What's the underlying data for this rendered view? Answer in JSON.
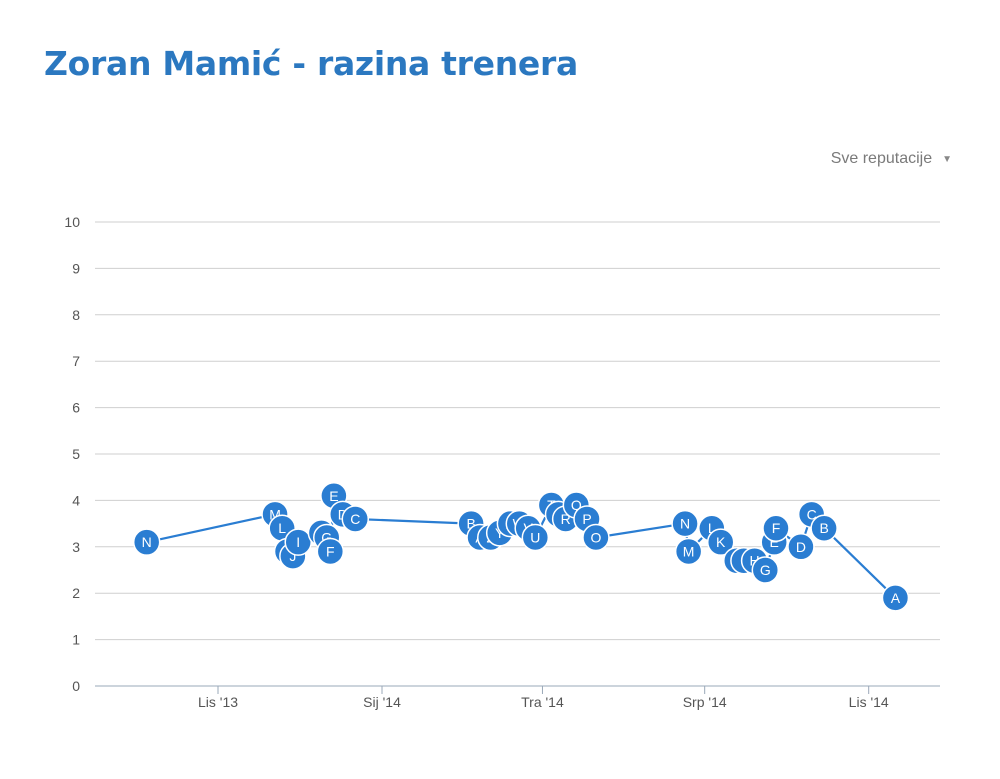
{
  "header": {
    "title": "Zoran Mamić - razina trenera"
  },
  "filter": {
    "label": "Sve reputacije",
    "caret_icon": "caret-down-icon"
  },
  "colors": {
    "title": "#2b78c0",
    "series": "#2a7dd2",
    "grid": "#cfcfcf",
    "axis_text": "#555555"
  },
  "chart_data": {
    "type": "line",
    "title": "Zoran Mamić - razina trenera",
    "xlabel": "",
    "ylabel": "",
    "ylim": [
      0,
      10
    ],
    "yticks": [
      "0",
      "1",
      "2",
      "3",
      "4",
      "5",
      "6",
      "7",
      "8",
      "9",
      "10"
    ],
    "xticks": [
      "Lis '13",
      "Sij '14",
      "Tra '14",
      "Srp '14",
      "Lis '14"
    ],
    "grid": true,
    "legend": "none",
    "series": [
      {
        "points": [
          {
            "x": "2013-08-22",
            "y": 3.1,
            "label": "N"
          },
          {
            "x": "2013-11-02",
            "y": 3.7,
            "label": "M"
          },
          {
            "x": "2013-11-06",
            "y": 3.4,
            "label": "L"
          },
          {
            "x": "2013-11-09",
            "y": 2.9,
            "label": "K"
          },
          {
            "x": "2013-11-12",
            "y": 2.8,
            "label": "J"
          },
          {
            "x": "2013-11-15",
            "y": 3.1,
            "label": "I"
          },
          {
            "x": "2013-11-28",
            "y": 3.3,
            "label": "H"
          },
          {
            "x": "2013-12-01",
            "y": 3.2,
            "label": "G"
          },
          {
            "x": "2013-12-03",
            "y": 2.9,
            "label": "F"
          },
          {
            "x": "2013-12-05",
            "y": 4.1,
            "label": "E"
          },
          {
            "x": "2013-12-10",
            "y": 3.7,
            "label": "D"
          },
          {
            "x": "2013-12-17",
            "y": 3.6,
            "label": "C"
          },
          {
            "x": "2014-02-20",
            "y": 3.5,
            "label": "B"
          },
          {
            "x": "2014-02-25",
            "y": 3.2,
            "label": "A"
          },
          {
            "x": "2014-03-03",
            "y": 3.2,
            "label": "Z"
          },
          {
            "x": "2014-03-08",
            "y": 3.3,
            "label": "Y"
          },
          {
            "x": "2014-03-14",
            "y": 3.5,
            "label": "X"
          },
          {
            "x": "2014-03-19",
            "y": 3.5,
            "label": "W"
          },
          {
            "x": "2014-03-24",
            "y": 3.4,
            "label": "V"
          },
          {
            "x": "2014-03-28",
            "y": 3.2,
            "label": "U"
          },
          {
            "x": "2014-04-06",
            "y": 3.9,
            "label": "T"
          },
          {
            "x": "2014-04-10",
            "y": 3.7,
            "label": "S"
          },
          {
            "x": "2014-04-14",
            "y": 3.6,
            "label": "R"
          },
          {
            "x": "2014-04-20",
            "y": 3.9,
            "label": "Q"
          },
          {
            "x": "2014-04-26",
            "y": 3.6,
            "label": "P"
          },
          {
            "x": "2014-05-01",
            "y": 3.2,
            "label": "O"
          },
          {
            "x": "2014-06-20",
            "y": 3.5,
            "label": "N"
          },
          {
            "x": "2014-06-22",
            "y": 2.9,
            "label": "M"
          },
          {
            "x": "2014-07-05",
            "y": 3.4,
            "label": "L"
          },
          {
            "x": "2014-07-10",
            "y": 3.1,
            "label": "K"
          },
          {
            "x": "2014-07-19",
            "y": 2.7,
            "label": "J"
          },
          {
            "x": "2014-07-23",
            "y": 2.7,
            "label": "I"
          },
          {
            "x": "2014-07-29",
            "y": 2.7,
            "label": "H"
          },
          {
            "x": "2014-08-04",
            "y": 2.5,
            "label": "G"
          },
          {
            "x": "2014-08-09",
            "y": 3.1,
            "label": "E"
          },
          {
            "x": "2014-08-10",
            "y": 3.4,
            "label": "F"
          },
          {
            "x": "2014-08-24",
            "y": 3.0,
            "label": "D"
          },
          {
            "x": "2014-08-30",
            "y": 3.7,
            "label": "C"
          },
          {
            "x": "2014-09-06",
            "y": 3.4,
            "label": "B"
          },
          {
            "x": "2014-10-16",
            "y": 1.9,
            "label": "A"
          }
        ]
      }
    ]
  }
}
